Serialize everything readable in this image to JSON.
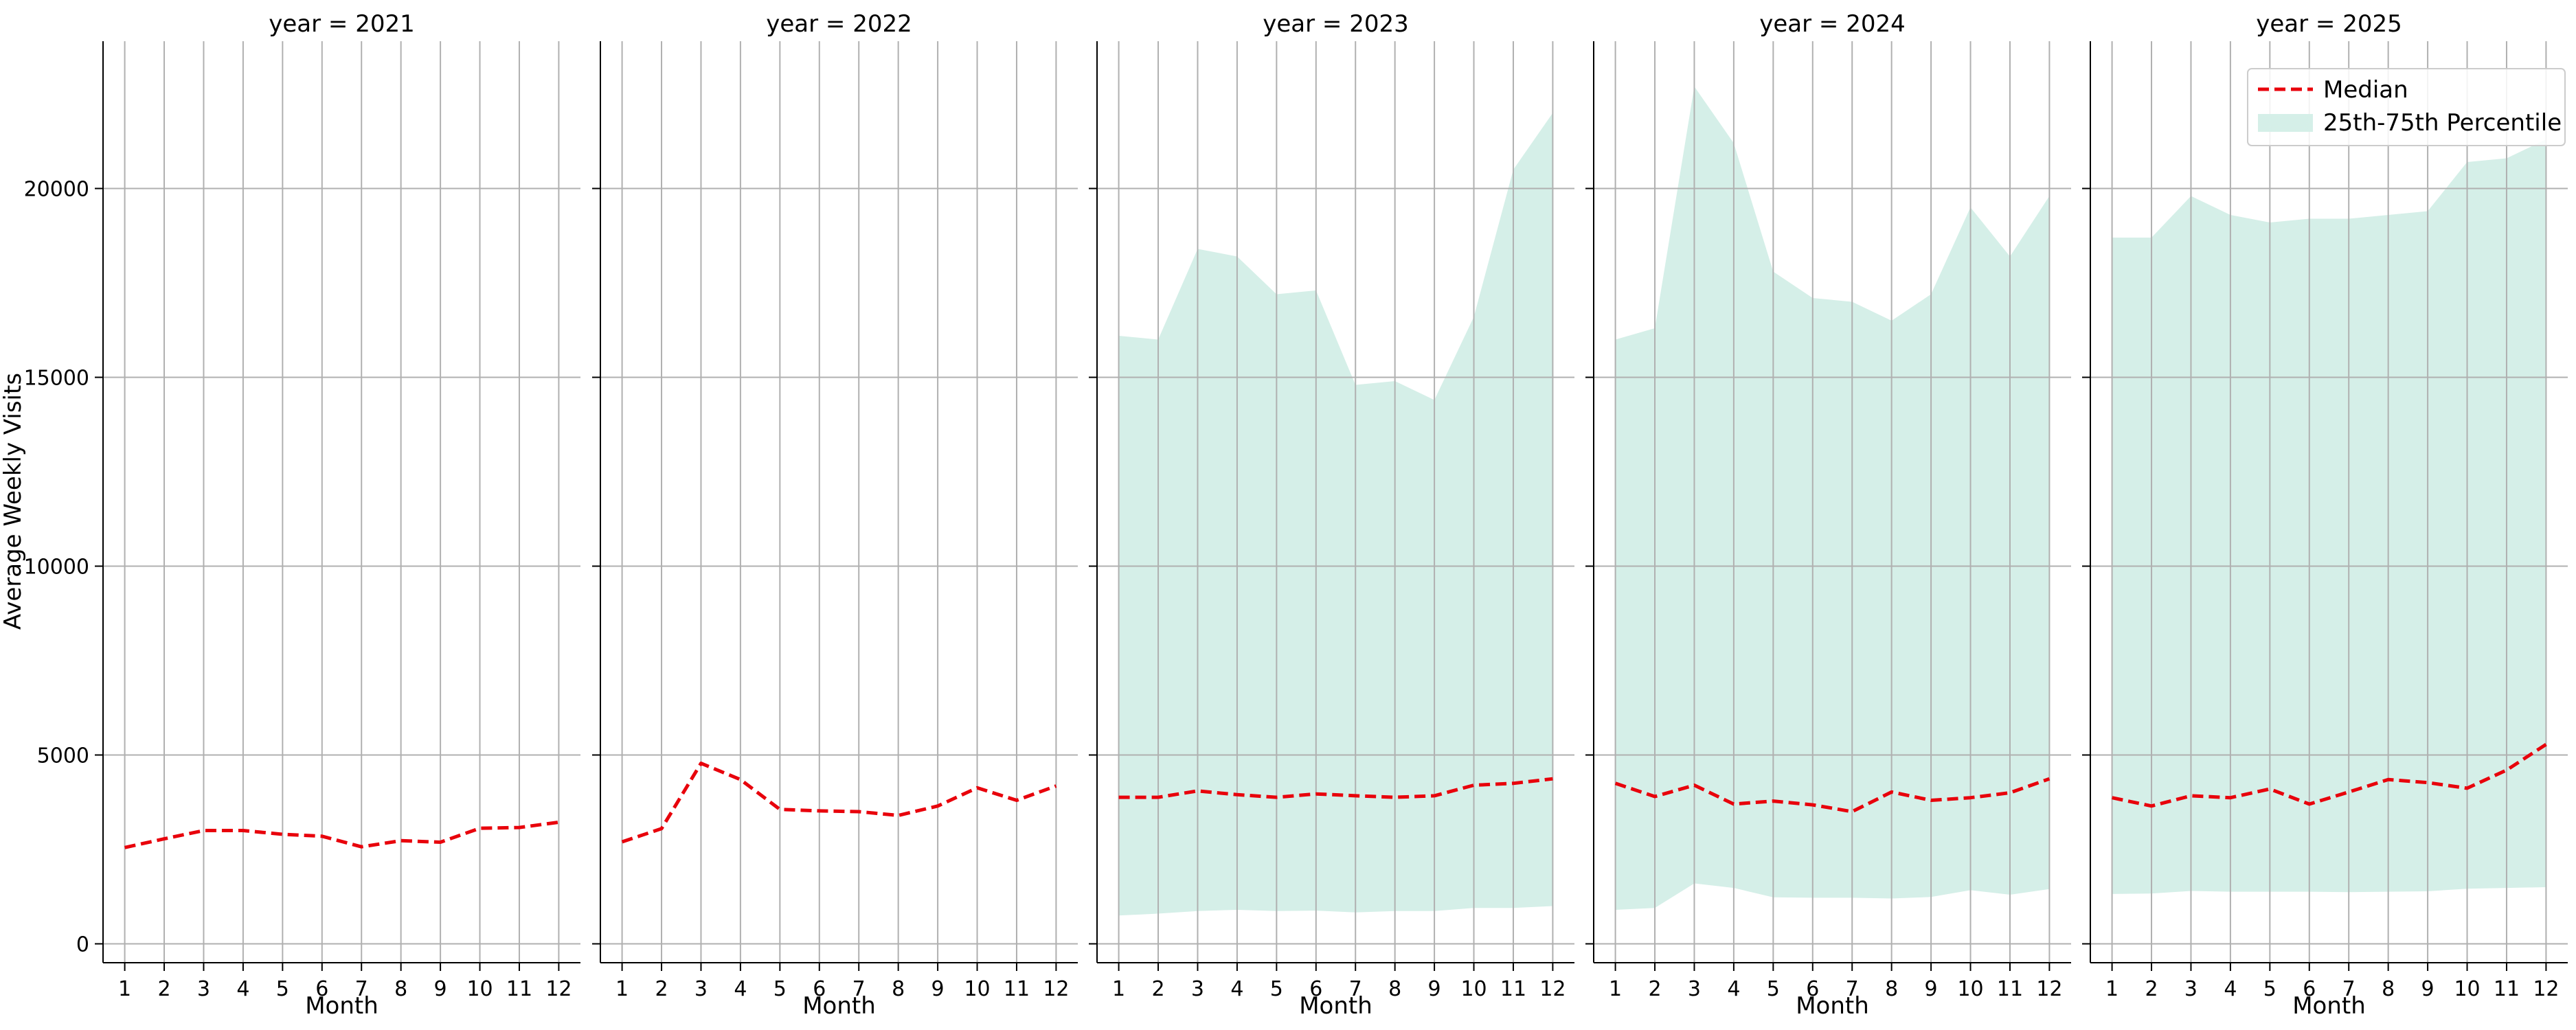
{
  "chart_data": {
    "type": "line",
    "ylabel": "Average Weekly Visits",
    "xlabel": "Month",
    "x": [
      1,
      2,
      3,
      4,
      5,
      6,
      7,
      8,
      9,
      10,
      11,
      12
    ],
    "yticks": [
      0,
      5000,
      10000,
      15000,
      20000
    ],
    "ylim": [
      -500,
      23900
    ],
    "xlim": [
      0.45,
      12.55
    ],
    "grid": true,
    "legend": {
      "placement": "top-right",
      "median_label": "Median",
      "band_label": "25th-75th Percentile"
    },
    "colors": {
      "median": "#e8000b",
      "band": "#d5efe8",
      "grid": "#b0b0b0"
    },
    "panels": [
      {
        "title": "year = 2021",
        "median": [
          2550,
          2780,
          3000,
          3000,
          2900,
          2850,
          2570,
          2730,
          2690,
          3060,
          3080,
          3220
        ],
        "p25": null,
        "p75": null
      },
      {
        "title": "year = 2022",
        "median": [
          2700,
          3050,
          4780,
          4350,
          3560,
          3520,
          3500,
          3400,
          3650,
          4130,
          3800,
          4180
        ],
        "p25": null,
        "p75": null
      },
      {
        "title": "year = 2023",
        "median": [
          3880,
          3880,
          4050,
          3950,
          3880,
          3970,
          3920,
          3880,
          3920,
          4200,
          4250,
          4370
        ],
        "p25": [
          750,
          800,
          870,
          900,
          870,
          880,
          830,
          870,
          870,
          950,
          950,
          1000
        ],
        "p75": [
          16100,
          16000,
          18400,
          18200,
          17200,
          17300,
          14800,
          14900,
          14400,
          16600,
          20500,
          22000
        ]
      },
      {
        "title": "year = 2024",
        "median": [
          4250,
          3900,
          4200,
          3700,
          3780,
          3680,
          3500,
          4020,
          3800,
          3870,
          4000,
          4370
        ],
        "p25": [
          900,
          950,
          1600,
          1480,
          1230,
          1220,
          1220,
          1200,
          1240,
          1420,
          1300,
          1450
        ],
        "p75": [
          16000,
          16300,
          22700,
          21200,
          17800,
          17100,
          17000,
          16500,
          17200,
          19500,
          18200,
          19800
        ]
      },
      {
        "title": "year = 2025",
        "median": [
          3870,
          3650,
          3920,
          3870,
          4100,
          3700,
          4020,
          4350,
          4270,
          4120,
          4600,
          5280
        ],
        "p25": [
          1320,
          1330,
          1400,
          1380,
          1380,
          1380,
          1370,
          1380,
          1390,
          1460,
          1480,
          1500
        ],
        "p75": [
          18700,
          18700,
          19800,
          19300,
          19100,
          19200,
          19200,
          19300,
          19400,
          20700,
          20800,
          21300
        ]
      }
    ]
  }
}
